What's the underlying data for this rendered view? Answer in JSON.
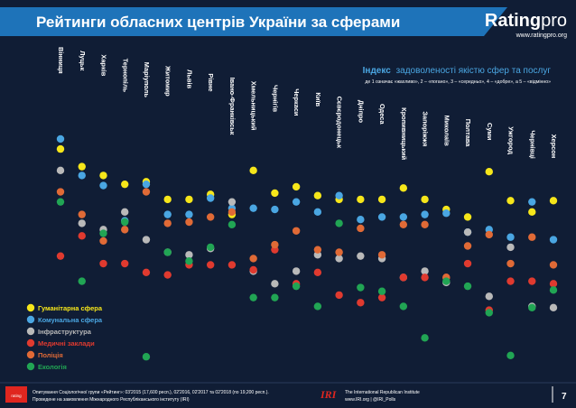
{
  "header": {
    "title": "Рейтинги обласних центрів України за сферами",
    "brand": {
      "logo_main": "Rating",
      "logo_sub": "pro",
      "url": "www.ratingpro.org"
    }
  },
  "subtitle": {
    "index_title_bold": "Індекс",
    "index_title_rest": "задоволеності якістю сфер та послуг",
    "scale_note": "де 1 означає «жахливо», 2 – «погано», 3 – «середньо», 4 – «добре», а 5 – «відмінно»"
  },
  "footer": {
    "badge": "rating",
    "text_line1": "Опитування Соціологічної групи «Рейтинг»: 03'2015 (17,600 респ.), 02'2016, 02'2017 та 02'2018 (по 19,200 респ.).",
    "text_line2": "Проведене на замовлення Міжнародного Республіканського інституту (IRI)",
    "iri_logo": "IRI",
    "iri_line1": "The International Republican Institute",
    "iri_line2": "www.IRI.org | @IRI_Polls",
    "page_number": "7"
  },
  "colors": {
    "background": "#101d35",
    "header_bar": "#1e73b9",
    "humanitarian": "#f6e61a",
    "communal": "#4aa6e2",
    "infrastructure": "#b9b9b9",
    "medical": "#e03a2f",
    "police": "#e06a36",
    "ecology": "#21a554"
  },
  "chart_data": {
    "type": "scatter",
    "title": "Індекс задоволеності якістю сфер та послуг",
    "categories": [
      "Вінниця",
      "Луцьк",
      "Харків",
      "Тернопіль",
      "Маріуполь",
      "Житомир",
      "Львів",
      "Рівне",
      "Івано-Франківськ",
      "Хмельницький",
      "Чернігів",
      "Черкаси",
      "Київ",
      "Сєвєродонецьк",
      "Дніпро",
      "Одеса",
      "Кропивницький",
      "Запоріжжя",
      "Миколаїв",
      "Полтава",
      "Суми",
      "Ужгород",
      "Чернівці",
      "Херсон"
    ],
    "series": [
      {
        "name": "Гуманітарна сфера",
        "color": "#f6e61a",
        "values": [
          4.12,
          3.98,
          3.91,
          3.84,
          3.86,
          3.72,
          3.72,
          3.76,
          3.6,
          3.95,
          3.77,
          3.82,
          3.75,
          3.72,
          3.72,
          3.72,
          3.81,
          3.72,
          3.64,
          3.58,
          3.94,
          3.71,
          3.62,
          3.71
        ]
      },
      {
        "name": "Комунальна сфера",
        "color": "#4aa6e2",
        "values": [
          4.2,
          3.91,
          3.83,
          3.55,
          3.84,
          3.6,
          3.6,
          3.73,
          3.65,
          3.65,
          3.64,
          3.7,
          3.62,
          3.75,
          3.56,
          3.58,
          3.58,
          3.6,
          3.61,
          3.46,
          3.48,
          3.42,
          3.7,
          3.4
        ]
      },
      {
        "name": "Інфраструктура",
        "color": "#b9b9b9",
        "values": [
          3.95,
          3.53,
          3.48,
          3.62,
          3.4,
          3.3,
          3.28,
          3.33,
          3.7,
          3.15,
          3.05,
          3.15,
          3.28,
          3.25,
          3.27,
          3.25,
          3.1,
          3.15,
          3.06,
          3.46,
          2.95,
          3.34,
          2.87,
          2.86
        ]
      },
      {
        "name": "Медичні заклади",
        "color": "#e03a2f",
        "values": [
          3.27,
          3.43,
          3.21,
          3.21,
          3.14,
          3.12,
          3.2,
          3.2,
          3.2,
          3.16,
          3.32,
          3.05,
          3.14,
          2.96,
          2.9,
          2.94,
          3.1,
          3.1,
          3.1,
          3.21,
          2.84,
          3.07,
          3.07,
          3.05
        ]
      },
      {
        "name": "Поліція",
        "color": "#e06a36",
        "values": [
          3.78,
          3.6,
          3.39,
          3.48,
          3.78,
          3.53,
          3.54,
          3.58,
          3.62,
          3.25,
          3.36,
          3.47,
          3.32,
          3.3,
          3.49,
          3.28,
          3.52,
          3.52,
          3.1,
          3.35,
          3.44,
          3.21,
          3.42,
          3.2
        ]
      },
      {
        "name": "Екологія",
        "color": "#21a554",
        "values": [
          3.7,
          3.07,
          3.45,
          3.54,
          2.47,
          3.3,
          3.23,
          3.34,
          3.52,
          2.94,
          2.94,
          3.03,
          2.87,
          3.53,
          3.02,
          2.99,
          2.87,
          2.62,
          3.07,
          3.03,
          2.82,
          2.48,
          2.86,
          3.0
        ]
      }
    ],
    "ylim": [
      2.4,
      4.3
    ],
    "xlabel": "",
    "ylabel": "",
    "legend": "bottom-left",
    "grid": false
  }
}
